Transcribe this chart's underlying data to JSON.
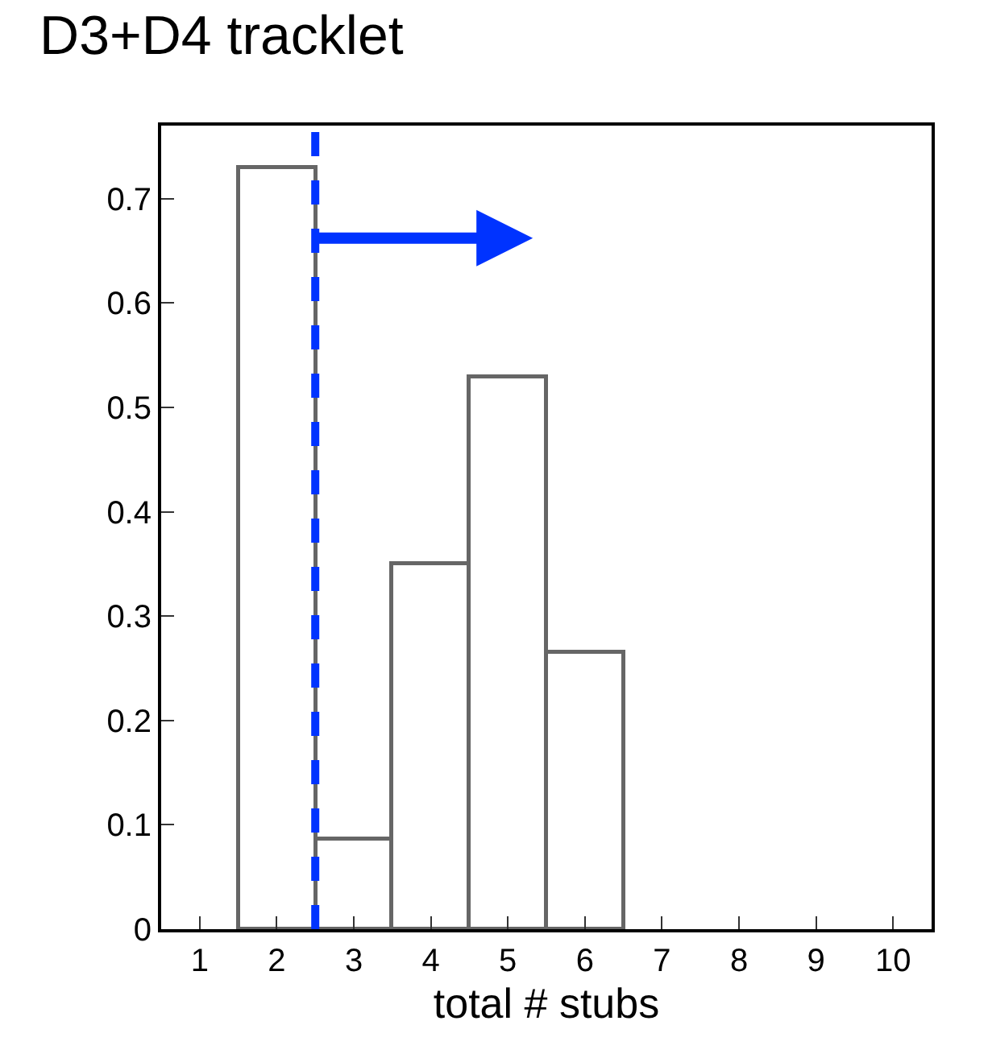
{
  "chart_data": {
    "type": "histogram",
    "title": "D3+D4 tracklet",
    "xlabel": "total # stubs",
    "bins": [
      1.5,
      2.5,
      3.5,
      4.5,
      5.5,
      6.5
    ],
    "values": [
      0.73,
      0.086,
      0.35,
      0.53,
      0.265
    ],
    "color": "#666666",
    "xlim": [
      0.5,
      10.5
    ],
    "xticks": [
      1,
      2,
      3,
      4,
      5,
      6,
      7,
      8,
      9,
      10
    ],
    "ylim": [
      0,
      0.77
    ],
    "yticks": [
      0,
      0.1,
      0.2,
      0.3,
      0.4,
      0.5,
      0.6,
      0.7
    ],
    "ref_lines": [
      {
        "axis": "x",
        "value": 2.5,
        "color": "#0033ff",
        "line_style": "dashed"
      }
    ]
  }
}
